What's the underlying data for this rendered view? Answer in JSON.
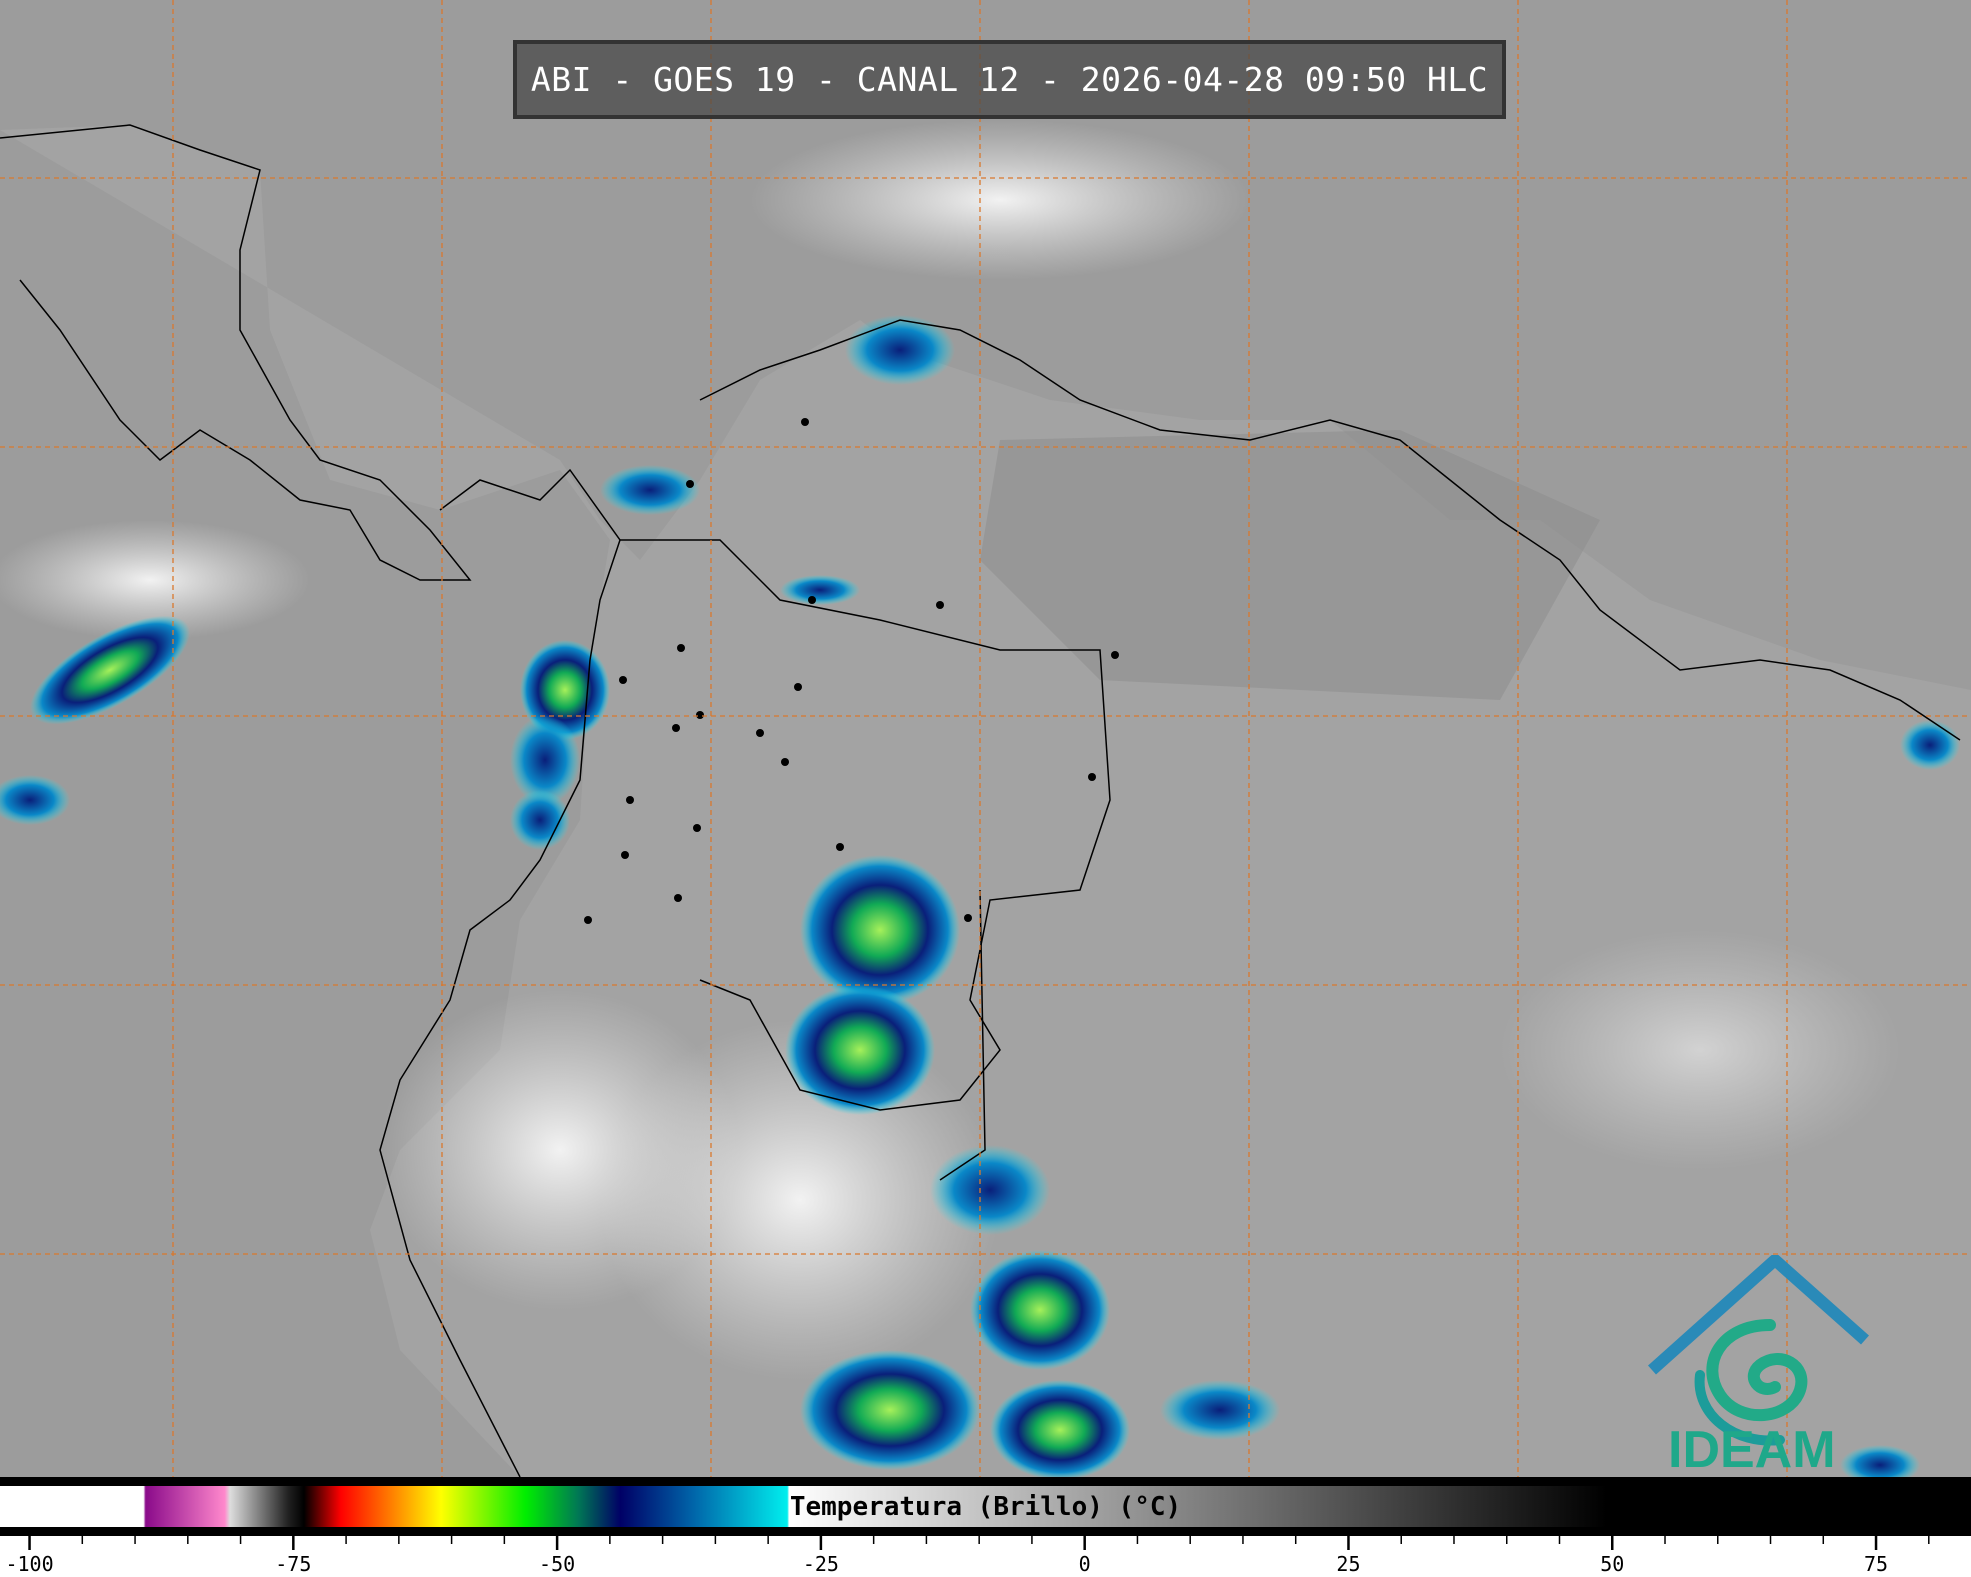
{
  "header": {
    "title": "ABI - GOES 19 - CANAL 12 - 2026-04-28 09:50 HLC"
  },
  "map": {
    "background_color": "#9c9c9c",
    "grid_color": "#d9782d",
    "coastline_color": "#000000"
  },
  "colorbar": {
    "label": "Temperatura (Brillo) (°C)",
    "range": [
      -102.8,
      84
    ],
    "major_ticks": [
      -100,
      -75,
      -50,
      -25,
      0,
      25,
      50,
      75
    ],
    "tick_labels": [
      "-100",
      "-75",
      "-50",
      "-25",
      "0",
      "25",
      "50",
      "75"
    ],
    "minor_step": 5,
    "stops": [
      {
        "value": -102.8,
        "color": "#ffffff"
      },
      {
        "value": -89.2,
        "color": "#ffffff"
      },
      {
        "value": -89,
        "color": "#8a0a8a"
      },
      {
        "value": -81.5,
        "color": "#ff88cc"
      },
      {
        "value": -81,
        "color": "#dddddd"
      },
      {
        "value": -75.5,
        "color": "#222222"
      },
      {
        "value": -74,
        "color": "#000000"
      },
      {
        "value": -70.5,
        "color": "#ff0000"
      },
      {
        "value": -66,
        "color": "#ff7700"
      },
      {
        "value": -61,
        "color": "#ffff00"
      },
      {
        "value": -53,
        "color": "#00ee00"
      },
      {
        "value": -48,
        "color": "#007755"
      },
      {
        "value": -44,
        "color": "#000066"
      },
      {
        "value": -37,
        "color": "#0066aa"
      },
      {
        "value": -28.2,
        "color": "#00eeee"
      },
      {
        "value": -28,
        "color": "#ffffff"
      },
      {
        "value": 49.5,
        "color": "#000000"
      },
      {
        "value": 84,
        "color": "#000000"
      }
    ]
  },
  "logo": {
    "text": "IDEAM",
    "color": "#1fa88a"
  }
}
